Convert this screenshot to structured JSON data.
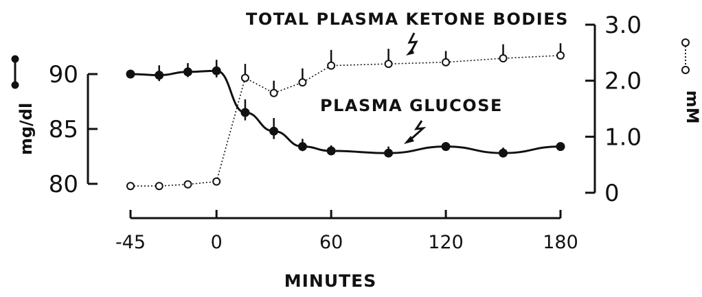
{
  "chart_data": {
    "type": "line",
    "xlabel": "MINUTES",
    "x_ticks": [
      "-45",
      "0",
      "60",
      "120",
      "180"
    ],
    "x_tick_values": [
      -45,
      0,
      60,
      120,
      180
    ],
    "xlim": [
      -45,
      180
    ],
    "y_left": {
      "label": "mg/dl",
      "ticks": [
        "80",
        "85",
        "90"
      ],
      "tick_values": [
        80,
        85,
        90
      ],
      "ylim": [
        80,
        92
      ]
    },
    "y_right": {
      "label": "mM",
      "ticks": [
        "0",
        "1.0",
        "2.0",
        "3.0"
      ],
      "tick_values": [
        0,
        1.0,
        2.0,
        3.0
      ],
      "ylim": [
        0,
        3.0
      ]
    },
    "series": [
      {
        "name": "PLASMA GLUCOSE",
        "axis": "left",
        "marker": "filled-circle",
        "line": "solid",
        "x": [
          -45,
          -30,
          -15,
          0,
          15,
          30,
          45,
          60,
          90,
          120,
          150,
          180
        ],
        "y": [
          90.0,
          89.9,
          90.2,
          90.3,
          86.5,
          84.8,
          83.4,
          83.0,
          82.8,
          83.4,
          82.8,
          83.4
        ],
        "error": [
          0,
          0.9,
          0.8,
          1.0,
          1.2,
          1.2,
          0.7,
          0.5,
          0.6,
          0.4,
          0.5,
          0
        ]
      },
      {
        "name": "TOTAL PLASMA KETONE BODIES",
        "axis": "right",
        "marker": "open-circle",
        "line": "dotted",
        "x": [
          -45,
          -30,
          -15,
          0,
          15,
          30,
          45,
          60,
          90,
          120,
          150,
          180
        ],
        "y": [
          0.12,
          0.12,
          0.15,
          0.2,
          2.05,
          1.78,
          1.97,
          2.27,
          2.3,
          2.33,
          2.4,
          2.45
        ],
        "error": [
          0,
          0,
          0,
          0,
          0.25,
          0.22,
          0.25,
          0.28,
          0.27,
          0.2,
          0.25,
          0.22
        ]
      }
    ]
  }
}
